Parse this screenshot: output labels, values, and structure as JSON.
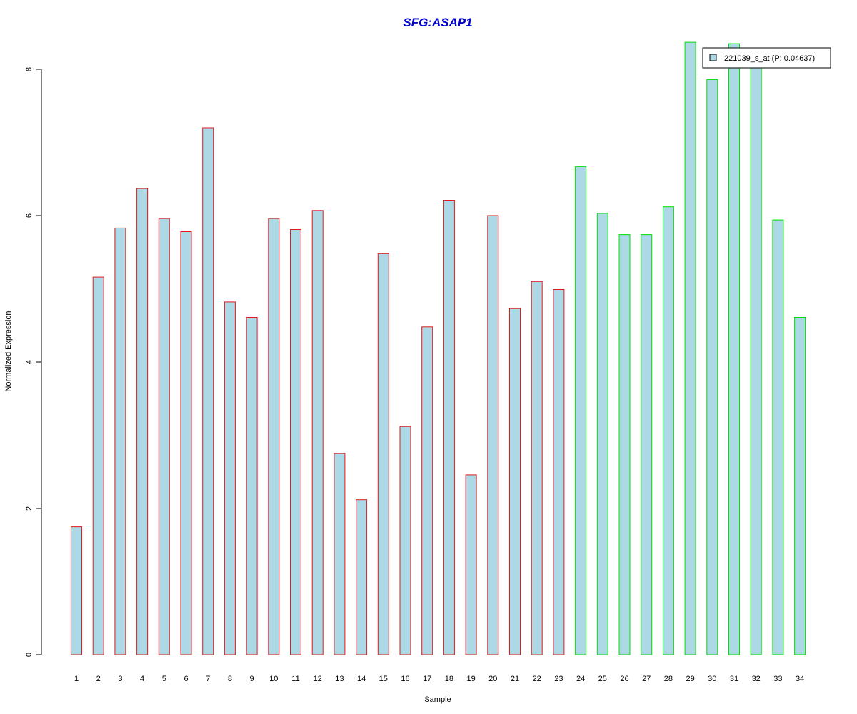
{
  "chart_data": {
    "type": "bar",
    "title": "SFG:ASAP1",
    "xlabel": "Sample",
    "ylabel": "Normalized Expression",
    "categories": [
      "1",
      "2",
      "3",
      "4",
      "5",
      "6",
      "7",
      "8",
      "9",
      "10",
      "11",
      "12",
      "13",
      "14",
      "15",
      "16",
      "17",
      "18",
      "19",
      "20",
      "21",
      "22",
      "23",
      "24",
      "25",
      "26",
      "27",
      "28",
      "29",
      "30",
      "31",
      "32",
      "33",
      "34"
    ],
    "values": [
      1.75,
      5.16,
      5.83,
      6.37,
      5.96,
      5.78,
      7.2,
      4.82,
      4.61,
      5.96,
      5.81,
      6.07,
      2.75,
      2.12,
      5.48,
      3.12,
      4.48,
      6.21,
      2.46,
      6.0,
      4.73,
      5.1,
      4.99,
      6.67,
      6.03,
      5.74,
      5.74,
      6.12,
      8.37,
      7.86,
      8.35,
      8.07,
      5.94,
      4.61
    ],
    "group": [
      "A",
      "A",
      "A",
      "A",
      "A",
      "A",
      "A",
      "A",
      "A",
      "A",
      "A",
      "A",
      "A",
      "A",
      "A",
      "A",
      "A",
      "A",
      "A",
      "A",
      "A",
      "A",
      "A",
      "B",
      "B",
      "B",
      "B",
      "B",
      "B",
      "B",
      "B",
      "B",
      "B",
      "B"
    ],
    "yticks": [
      "0",
      "2",
      "4",
      "6",
      "8"
    ],
    "ylim": [
      0,
      8.0
    ],
    "legend": {
      "entries": [
        {
          "label": "221039_s_at (P: 0.04637)",
          "color": "#add8e6"
        }
      ],
      "placement": "top-right"
    },
    "colors": {
      "fill": "#add8e6",
      "groupA_border": "#e31a1c",
      "groupB_border": "#00e000",
      "title": "#0000cd"
    },
    "grid": false
  }
}
